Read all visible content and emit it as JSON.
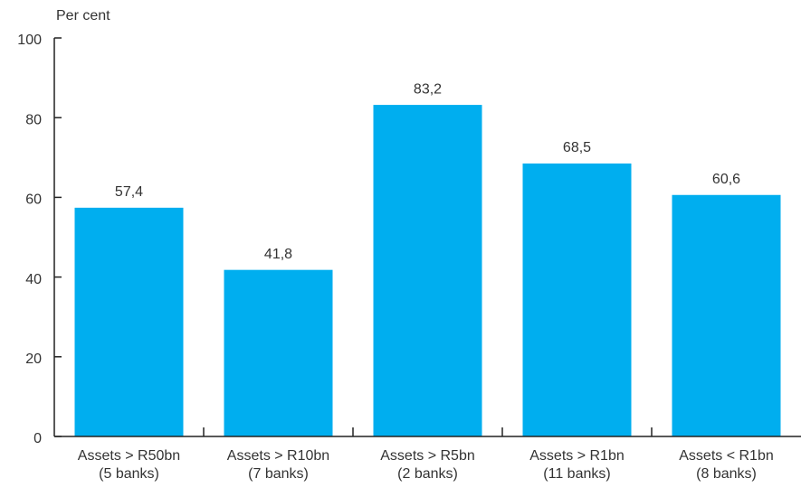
{
  "chart_data": {
    "type": "bar",
    "y_axis_label": "Per cent",
    "categories": [
      [
        "Assets > R50bn",
        "(5 banks)"
      ],
      [
        "Assets > R10bn",
        "(7 banks)"
      ],
      [
        "Assets > R5bn",
        "(2 banks)"
      ],
      [
        "Assets > R1bn",
        "(11 banks)"
      ],
      [
        "Assets < R1bn",
        "(8 banks)"
      ]
    ],
    "values": [
      57.4,
      41.8,
      83.2,
      68.5,
      60.6
    ],
    "value_labels": [
      "57,4",
      "41,8",
      "83,2",
      "68,5",
      "60,6"
    ],
    "color": "#00aeef",
    "ylim": [
      0,
      100
    ],
    "yticks": [
      0,
      20,
      40,
      60,
      80,
      100
    ],
    "grid": false
  }
}
